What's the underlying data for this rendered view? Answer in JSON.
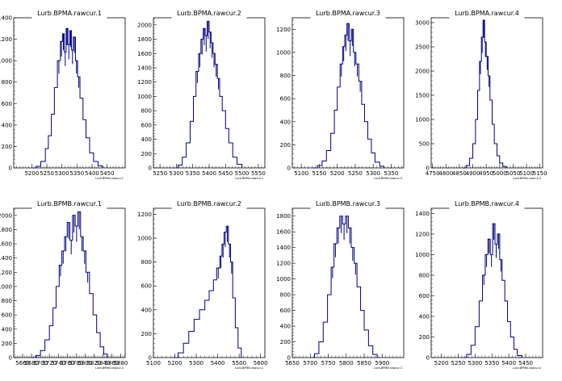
{
  "colors": {
    "hist_line": "#000080",
    "axis": "#000000",
    "background": "#ffffff"
  },
  "chart_data": [
    {
      "type": "histogram",
      "title": "Lurb.BPMA.rawcur.1",
      "xlabel": "Lurb.BPMA.rawcur.1",
      "xlim": [
        5140,
        5510
      ],
      "ylim": [
        0,
        1400
      ],
      "xticks": [
        5200,
        5250,
        5300,
        5350,
        5400,
        5450
      ],
      "yticks": [
        0,
        200,
        400,
        600,
        800,
        1000,
        1200,
        1400
      ],
      "x": [
        5200,
        5215,
        5230,
        5245,
        5255,
        5265,
        5275,
        5285,
        5295,
        5302,
        5308,
        5314,
        5320,
        5326,
        5332,
        5338,
        5345,
        5352,
        5360,
        5370,
        5380,
        5392,
        5405,
        5420,
        5435
      ],
      "values": [
        0,
        15,
        60,
        180,
        300,
        500,
        750,
        1000,
        1180,
        1250,
        1080,
        1300,
        1150,
        1280,
        1100,
        1220,
        1000,
        850,
        650,
        450,
        280,
        140,
        60,
        20,
        0
      ]
    },
    {
      "type": "histogram",
      "title": "Lurb.BPMA.rawcur.2",
      "xlabel": "Lurb.BPMA.rawcur.2",
      "xlim": [
        5230,
        5570
      ],
      "ylim": [
        0,
        2100
      ],
      "xticks": [
        5250,
        5300,
        5350,
        5400,
        5450,
        5500,
        5550
      ],
      "yticks": [
        0,
        200,
        400,
        600,
        800,
        1000,
        1200,
        1400,
        1600,
        1800,
        2000
      ],
      "x": [
        5290,
        5305,
        5318,
        5330,
        5342,
        5352,
        5360,
        5368,
        5375,
        5382,
        5388,
        5394,
        5400,
        5406,
        5412,
        5418,
        5425,
        5432,
        5440,
        5450,
        5460,
        5472,
        5485,
        5500
      ],
      "values": [
        0,
        40,
        150,
        350,
        650,
        1000,
        1350,
        1600,
        1800,
        1950,
        1850,
        2050,
        1900,
        1750,
        1600,
        1450,
        1250,
        1000,
        800,
        550,
        350,
        150,
        50,
        0
      ]
    },
    {
      "type": "histogram",
      "title": "Lurb.BPMA.rawcur.3",
      "xlabel": "Lurb.BPMA.rawcur.3",
      "xlim": [
        5075,
        5385
      ],
      "ylim": [
        0,
        1300
      ],
      "xticks": [
        5100,
        5150,
        5200,
        5250,
        5300,
        5350
      ],
      "yticks": [
        0,
        200,
        400,
        600,
        800,
        1000,
        1200
      ],
      "x": [
        5130,
        5145,
        5158,
        5170,
        5182,
        5192,
        5200,
        5208,
        5215,
        5221,
        5227,
        5233,
        5239,
        5245,
        5252,
        5260,
        5268,
        5276,
        5285,
        5295,
        5305,
        5318,
        5330
      ],
      "values": [
        0,
        20,
        60,
        150,
        300,
        500,
        700,
        900,
        1050,
        1150,
        1250,
        1100,
        1200,
        1000,
        900,
        750,
        550,
        400,
        250,
        130,
        50,
        15,
        0
      ]
    },
    {
      "type": "histogram",
      "title": "Lurb.BPMA.rawcur.4",
      "xlabel": "Lurb.BPMA.rawcur.4",
      "xlim": [
        4745,
        5160
      ],
      "ylim": [
        0,
        3100
      ],
      "xticks": [
        4750,
        4800,
        4850,
        4900,
        4950,
        5000,
        5050,
        5100,
        5150
      ],
      "yticks": [
        0,
        500,
        1000,
        1500,
        2000,
        2500,
        3000
      ],
      "x": [
        4860,
        4875,
        4888,
        4900,
        4910,
        4918,
        4925,
        4932,
        4938,
        4944,
        4950,
        4957,
        4964,
        4972,
        4980,
        4990,
        5000,
        5012,
        5025
      ],
      "values": [
        0,
        50,
        200,
        500,
        1000,
        1600,
        2200,
        2700,
        3050,
        2600,
        2300,
        1900,
        1400,
        900,
        500,
        250,
        100,
        30,
        0
      ]
    },
    {
      "type": "histogram",
      "title": "Lurb.BPMB.rawcur.1",
      "xlabel": "Lurb.BPMB.rawcur.1",
      "xlim": [
        5640,
        5890
      ],
      "ylim": [
        0,
        2100
      ],
      "xticks": [
        5660,
        5680,
        5700,
        5720,
        5740,
        5760,
        5780,
        5800,
        5820,
        5840,
        5860,
        5880
      ],
      "yticks": [
        0,
        200,
        400,
        600,
        800,
        1000,
        1200,
        1400,
        1600,
        1800,
        2000
      ],
      "x": [
        5680,
        5690,
        5700,
        5710,
        5720,
        5728,
        5735,
        5742,
        5748,
        5754,
        5760,
        5766,
        5772,
        5778,
        5784,
        5790,
        5796,
        5802,
        5810,
        5818,
        5826,
        5834,
        5842,
        5850
      ],
      "values": [
        0,
        30,
        100,
        250,
        450,
        700,
        1000,
        1300,
        1500,
        1700,
        1900,
        1650,
        2000,
        1850,
        2050,
        1700,
        1500,
        1200,
        900,
        600,
        350,
        150,
        50,
        0
      ]
    },
    {
      "type": "histogram",
      "title": "Lurb.BPMB.rawcur.2",
      "xlabel": "Lurb.BPMB.rawcur.2",
      "xlim": [
        5100,
        5620
      ],
      "ylim": [
        0,
        1250
      ],
      "xticks": [
        5100,
        5200,
        5300,
        5400,
        5500,
        5600
      ],
      "yticks": [
        0,
        200,
        400,
        600,
        800,
        1000,
        1200
      ],
      "x": [
        5190,
        5215,
        5240,
        5265,
        5290,
        5315,
        5340,
        5360,
        5380,
        5395,
        5410,
        5420,
        5430,
        5440,
        5450,
        5460,
        5470,
        5482,
        5495,
        5510
      ],
      "values": [
        0,
        40,
        120,
        220,
        320,
        400,
        480,
        560,
        650,
        750,
        850,
        950,
        1050,
        1100,
        950,
        800,
        500,
        250,
        80,
        0
      ]
    },
    {
      "type": "histogram",
      "title": "Lurb.BPMB.rawcur.3",
      "xlabel": "Lurb.BPMB.rawcur.3",
      "xlim": [
        5650,
        5960
      ],
      "ylim": [
        0,
        1900
      ],
      "xticks": [
        5650,
        5700,
        5750,
        5800,
        5850,
        5900
      ],
      "yticks": [
        0,
        200,
        400,
        600,
        800,
        1000,
        1200,
        1400,
        1600,
        1800
      ],
      "x": [
        5700,
        5712,
        5724,
        5736,
        5748,
        5758,
        5766,
        5774,
        5782,
        5790,
        5798,
        5806,
        5814,
        5822,
        5830,
        5840,
        5850,
        5862,
        5874,
        5886
      ],
      "values": [
        0,
        50,
        200,
        450,
        800,
        1150,
        1450,
        1650,
        1800,
        1700,
        1800,
        1650,
        1400,
        1200,
        900,
        600,
        350,
        150,
        40,
        0
      ]
    },
    {
      "type": "histogram",
      "title": "Lurb.BPMB.rawcur.4",
      "xlabel": "Lurb.BPMB.rawcur.4",
      "xlim": [
        5170,
        5500
      ],
      "ylim": [
        0,
        1450
      ],
      "xticks": [
        5200,
        5250,
        5300,
        5350,
        5400,
        5450
      ],
      "yticks": [
        0,
        200,
        400,
        600,
        800,
        1000,
        1200,
        1400
      ],
      "x": [
        5260,
        5275,
        5288,
        5300,
        5312,
        5322,
        5330,
        5338,
        5345,
        5352,
        5359,
        5366,
        5373,
        5380,
        5388,
        5396,
        5405,
        5415,
        5425,
        5438
      ],
      "values": [
        0,
        30,
        120,
        300,
        550,
        800,
        1000,
        1150,
        1000,
        1300,
        1100,
        1200,
        950,
        750,
        550,
        350,
        200,
        80,
        20,
        0
      ]
    }
  ]
}
